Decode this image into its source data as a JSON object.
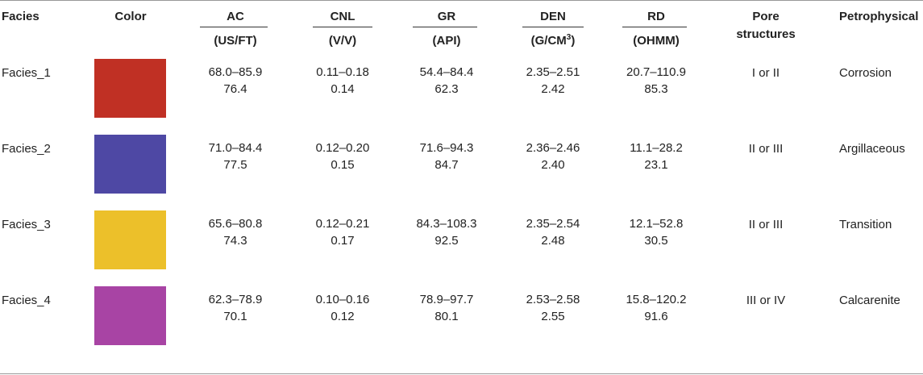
{
  "header": {
    "facies": "Facies",
    "color": "Color",
    "ac": "AC",
    "ac_unit": "(US/FT)",
    "cnl": "CNL",
    "cnl_unit": "(V/V)",
    "gr": "GR",
    "gr_unit": "(API)",
    "den": "DEN",
    "den_unit_prefix": "(G/CM",
    "den_unit_sup": "3",
    "den_unit_suffix": ")",
    "rd": "RD",
    "rd_unit": "(OHMM)",
    "pore_line1": "Pore",
    "pore_line2": "structures",
    "petro": "Petrophysical"
  },
  "rows": [
    {
      "facies": "Facies_1",
      "color": "#C03024",
      "ac_range": "68.0–85.9",
      "ac_mean": "76.4",
      "cnl_range": "0.11–0.18",
      "cnl_mean": "0.14",
      "gr_range": "54.4–84.4",
      "gr_mean": "62.3",
      "den_range": "2.35–2.51",
      "den_mean": "2.42",
      "rd_range": "20.7–110.9",
      "rd_mean": "85.3",
      "pore": "I or II",
      "petro": "Corrosion"
    },
    {
      "facies": "Facies_2",
      "color": "#4E48A4",
      "ac_range": "71.0–84.4",
      "ac_mean": "77.5",
      "cnl_range": "0.12–0.20",
      "cnl_mean": "0.15",
      "gr_range": "71.6–94.3",
      "gr_mean": "84.7",
      "den_range": "2.36–2.46",
      "den_mean": "2.40",
      "rd_range": "11.1–28.2",
      "rd_mean": "23.1",
      "pore": "II or III",
      "petro": "Argillaceous"
    },
    {
      "facies": "Facies_3",
      "color": "#ECC02A",
      "ac_range": "65.6–80.8",
      "ac_mean": "74.3",
      "cnl_range": "0.12–0.21",
      "cnl_mean": "0.17",
      "gr_range": "84.3–108.3",
      "gr_mean": "92.5",
      "den_range": "2.35–2.54",
      "den_mean": "2.48",
      "rd_range": "12.1–52.8",
      "rd_mean": "30.5",
      "pore": "II or III",
      "petro": "Transition"
    },
    {
      "facies": "Facies_4",
      "color": "#A844A4",
      "ac_range": "62.3–78.9",
      "ac_mean": "70.1",
      "cnl_range": "0.10–0.16",
      "cnl_mean": "0.12",
      "gr_range": "78.9–97.7",
      "gr_mean": "80.1",
      "den_range": "2.53–2.58",
      "den_mean": "2.55",
      "rd_range": "15.8–120.2",
      "rd_mean": "91.6",
      "pore": "III or IV",
      "petro": "Calcarenite"
    }
  ]
}
